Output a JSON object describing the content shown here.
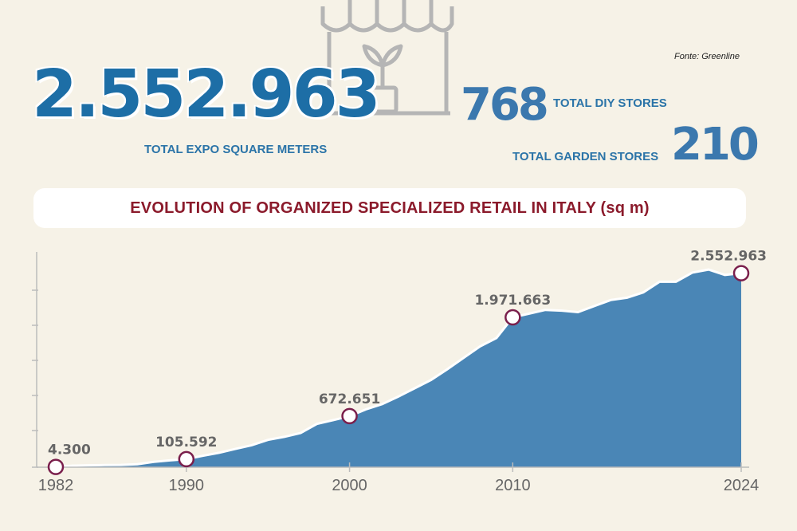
{
  "header": {
    "source": "Fonte: Greenline",
    "total_sqm_value": "2.552.963",
    "total_sqm_label": "TOTAL EXPO SQUARE METERS",
    "diy_value": "768",
    "diy_label": "TOTAL DIY STORES",
    "garden_value": "210",
    "garden_label": "TOTAL GARDEN STORES"
  },
  "colors": {
    "background": "#f6f2e7",
    "area_fill": "#4a86b6",
    "title_text": "#8b1a2b",
    "number_blue": "#1d6ea6",
    "marker_stroke": "#7a1f4c"
  },
  "illustration": "shop-with-plant-icon",
  "chart_data": {
    "type": "area",
    "title": "EVOLUTION OF ORGANIZED SPECIALIZED RETAIL IN ITALY (sq m)",
    "xlabel": "",
    "ylabel": "",
    "xlim": [
      1982,
      2024
    ],
    "ylim": [
      0,
      3000000
    ],
    "x_ticks": [
      "1982",
      "1990",
      "2000",
      "2010",
      "2024"
    ],
    "series": [
      {
        "x": [
          1982,
          1983,
          1984,
          1985,
          1986,
          1987,
          1988,
          1989,
          1990,
          1991,
          1992,
          1993,
          1994,
          1995,
          1996,
          1997,
          1998,
          1999,
          2000,
          2001,
          2002,
          2003,
          2004,
          2005,
          2006,
          2007,
          2008,
          2009,
          2010,
          2011,
          2012,
          2013,
          2014,
          2015,
          2016,
          2017,
          2018,
          2019,
          2020,
          2021,
          2022,
          2023,
          2024
        ],
        "values": [
          4300,
          20000,
          25000,
          28000,
          30000,
          40000,
          70000,
          90000,
          105592,
          150000,
          190000,
          240000,
          290000,
          360000,
          400000,
          450000,
          570000,
          620000,
          672651,
          760000,
          830000,
          930000,
          1040000,
          1150000,
          1290000,
          1440000,
          1590000,
          1700000,
          1971663,
          2020000,
          2070000,
          2060000,
          2040000,
          2120000,
          2200000,
          2230000,
          2300000,
          2440000,
          2440000,
          2560000,
          2600000,
          2530000,
          2552963
        ]
      }
    ],
    "annotations": [
      {
        "x": 1982,
        "value": 4300,
        "label": "4.300"
      },
      {
        "x": 1990,
        "value": 105592,
        "label": "105.592"
      },
      {
        "x": 2000,
        "value": 672651,
        "label": "672.651"
      },
      {
        "x": 2010,
        "value": 1971663,
        "label": "1.971.663"
      },
      {
        "x": 2024,
        "value": 2552963,
        "label": "2.552.963"
      }
    ],
    "grid": false,
    "legend": "none"
  }
}
